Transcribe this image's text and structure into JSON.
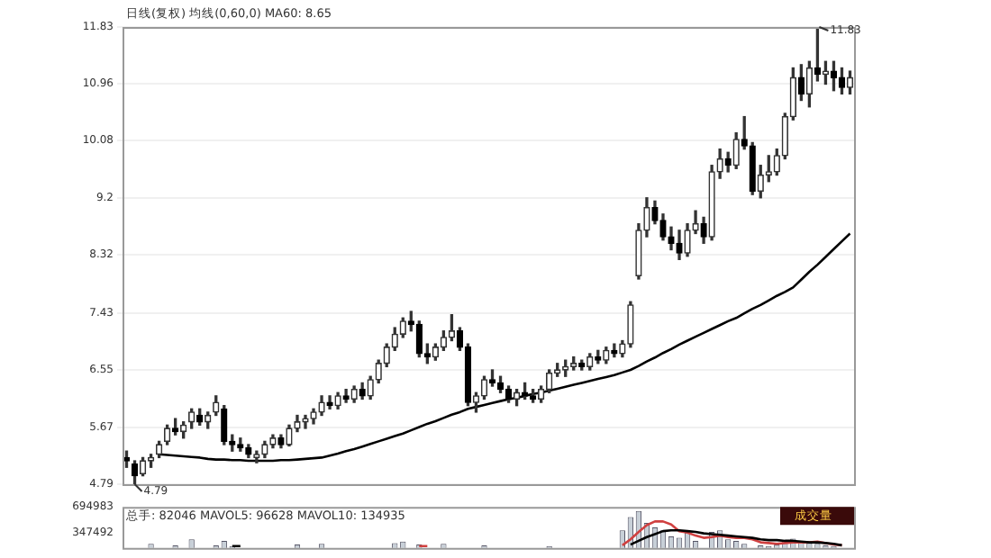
{
  "chart_data": [
    {
      "type": "candlestick",
      "title": "日线(复权) 均线(0,60,0) MA60: 8.65",
      "categories": [
        null,
        null,
        null,
        null,
        null,
        null,
        null,
        null,
        null,
        null,
        null,
        null,
        null,
        null,
        null,
        null,
        null,
        null,
        null,
        null,
        null,
        null,
        null,
        null,
        null,
        null,
        null,
        null,
        null,
        null,
        null,
        null,
        null,
        null,
        null,
        null,
        null,
        null,
        null,
        null,
        null,
        null,
        null,
        null,
        null,
        null,
        null,
        null,
        null,
        null,
        null,
        null,
        null,
        null,
        null,
        null,
        null,
        null,
        null,
        null,
        null,
        null,
        null,
        null,
        null,
        null,
        null,
        null,
        null,
        null,
        null,
        null,
        null,
        null,
        null,
        null,
        null,
        null,
        null,
        null,
        null,
        null,
        null,
        null,
        null,
        null,
        null,
        null,
        null,
        null
      ],
      "ohlc": [
        [
          5.2,
          5.3,
          5.05,
          5.15
        ],
        [
          5.1,
          5.15,
          4.79,
          4.92
        ],
        [
          4.95,
          5.2,
          4.92,
          5.15
        ],
        [
          5.15,
          5.25,
          5.05,
          5.2
        ],
        [
          5.25,
          5.45,
          5.2,
          5.4
        ],
        [
          5.45,
          5.7,
          5.4,
          5.65
        ],
        [
          5.65,
          5.8,
          5.55,
          5.6
        ],
        [
          5.6,
          5.75,
          5.5,
          5.7
        ],
        [
          5.75,
          5.95,
          5.65,
          5.9
        ],
        [
          5.85,
          5.95,
          5.7,
          5.75
        ],
        [
          5.75,
          5.9,
          5.65,
          5.85
        ],
        [
          5.9,
          6.15,
          5.85,
          6.05
        ],
        [
          5.95,
          6.0,
          5.4,
          5.45
        ],
        [
          5.45,
          5.55,
          5.3,
          5.4
        ],
        [
          5.4,
          5.5,
          5.3,
          5.35
        ],
        [
          5.35,
          5.4,
          5.2,
          5.25
        ],
        [
          5.2,
          5.3,
          5.12,
          5.25
        ],
        [
          5.25,
          5.45,
          5.2,
          5.4
        ],
        [
          5.4,
          5.55,
          5.35,
          5.5
        ],
        [
          5.5,
          5.55,
          5.35,
          5.4
        ],
        [
          5.4,
          5.7,
          5.38,
          5.65
        ],
        [
          5.65,
          5.85,
          5.6,
          5.75
        ],
        [
          5.75,
          5.85,
          5.65,
          5.8
        ],
        [
          5.8,
          5.95,
          5.72,
          5.9
        ],
        [
          5.9,
          6.15,
          5.85,
          6.05
        ],
        [
          6.05,
          6.15,
          5.95,
          6.0
        ],
        [
          6.0,
          6.2,
          5.95,
          6.15
        ],
        [
          6.15,
          6.25,
          6.05,
          6.1
        ],
        [
          6.1,
          6.3,
          6.05,
          6.25
        ],
        [
          6.25,
          6.35,
          6.1,
          6.15
        ],
        [
          6.15,
          6.45,
          6.1,
          6.4
        ],
        [
          6.4,
          6.7,
          6.35,
          6.65
        ],
        [
          6.65,
          6.95,
          6.6,
          6.9
        ],
        [
          6.9,
          7.2,
          6.85,
          7.1
        ],
        [
          7.1,
          7.35,
          7.05,
          7.3
        ],
        [
          7.3,
          7.45,
          7.15,
          7.25
        ],
        [
          7.25,
          7.3,
          6.75,
          6.8
        ],
        [
          6.8,
          6.95,
          6.65,
          6.75
        ],
        [
          6.75,
          6.95,
          6.7,
          6.9
        ],
        [
          6.9,
          7.15,
          6.85,
          7.05
        ],
        [
          7.05,
          7.4,
          7.0,
          7.15
        ],
        [
          7.15,
          7.2,
          6.85,
          6.9
        ],
        [
          6.9,
          6.95,
          6.0,
          6.05
        ],
        [
          6.05,
          6.2,
          5.9,
          6.15
        ],
        [
          6.15,
          6.45,
          6.1,
          6.4
        ],
        [
          6.4,
          6.55,
          6.3,
          6.35
        ],
        [
          6.35,
          6.45,
          6.2,
          6.25
        ],
        [
          6.25,
          6.3,
          6.05,
          6.1
        ],
        [
          6.1,
          6.25,
          6.0,
          6.2
        ],
        [
          6.2,
          6.35,
          6.1,
          6.15
        ],
        [
          6.15,
          6.25,
          6.05,
          6.1
        ],
        [
          6.1,
          6.3,
          6.05,
          6.25
        ],
        [
          6.25,
          6.55,
          6.2,
          6.5
        ],
        [
          6.5,
          6.65,
          6.45,
          6.55
        ],
        [
          6.55,
          6.7,
          6.45,
          6.6
        ],
        [
          6.6,
          6.75,
          6.55,
          6.65
        ],
        [
          6.65,
          6.7,
          6.55,
          6.6
        ],
        [
          6.6,
          6.8,
          6.55,
          6.75
        ],
        [
          6.75,
          6.85,
          6.65,
          6.7
        ],
        [
          6.7,
          6.9,
          6.65,
          6.85
        ],
        [
          6.85,
          6.95,
          6.75,
          6.8
        ],
        [
          6.8,
          7.0,
          6.75,
          6.95
        ],
        [
          6.95,
          7.6,
          6.9,
          7.55
        ],
        [
          8.0,
          8.8,
          7.95,
          8.7
        ],
        [
          8.7,
          9.2,
          8.6,
          9.05
        ],
        [
          9.05,
          9.15,
          8.8,
          8.85
        ],
        [
          8.85,
          8.95,
          8.55,
          8.6
        ],
        [
          8.6,
          8.75,
          8.4,
          8.5
        ],
        [
          8.5,
          8.7,
          8.25,
          8.35
        ],
        [
          8.35,
          8.8,
          8.3,
          8.7
        ],
        [
          8.7,
          9.0,
          8.65,
          8.8
        ],
        [
          8.8,
          8.9,
          8.5,
          8.6
        ],
        [
          8.6,
          9.7,
          8.55,
          9.6
        ],
        [
          9.6,
          9.95,
          9.5,
          9.8
        ],
        [
          9.8,
          9.9,
          9.6,
          9.7
        ],
        [
          9.7,
          10.2,
          9.65,
          10.1
        ],
        [
          10.1,
          10.45,
          9.95,
          10.0
        ],
        [
          10.0,
          10.05,
          9.25,
          9.3
        ],
        [
          9.3,
          9.7,
          9.2,
          9.55
        ],
        [
          9.55,
          9.85,
          9.45,
          9.6
        ],
        [
          9.6,
          9.95,
          9.55,
          9.85
        ],
        [
          9.85,
          10.5,
          9.8,
          10.45
        ],
        [
          10.45,
          11.2,
          10.4,
          11.05
        ],
        [
          11.05,
          11.25,
          10.7,
          10.8
        ],
        [
          10.8,
          11.3,
          10.6,
          11.2
        ],
        [
          11.2,
          11.83,
          11.0,
          11.1
        ],
        [
          11.1,
          11.3,
          10.95,
          11.15
        ],
        [
          11.15,
          11.3,
          10.85,
          11.05
        ],
        [
          11.05,
          11.2,
          10.8,
          10.9
        ],
        [
          10.9,
          11.15,
          10.8,
          11.05
        ]
      ],
      "series": [
        {
          "type": "line",
          "color": "#000000",
          "values": [
            null,
            null,
            null,
            null,
            5.25,
            5.24,
            5.23,
            5.22,
            5.21,
            5.2,
            5.18,
            5.17,
            5.17,
            5.16,
            5.16,
            5.15,
            5.15,
            5.15,
            5.15,
            5.16,
            5.16,
            5.17,
            5.18,
            5.19,
            5.2,
            5.23,
            5.26,
            5.3,
            5.33,
            5.37,
            5.41,
            5.45,
            5.49,
            5.53,
            5.57,
            5.62,
            5.67,
            5.72,
            5.76,
            5.81,
            5.86,
            5.9,
            5.95,
            5.98,
            6.01,
            6.04,
            6.07,
            6.1,
            6.12,
            6.15,
            6.18,
            6.2,
            6.23,
            6.26,
            6.29,
            6.32,
            6.35,
            6.38,
            6.41,
            6.44,
            6.47,
            6.51,
            6.55,
            6.61,
            6.68,
            6.74,
            6.81,
            6.87,
            6.94,
            7.0,
            7.06,
            7.12,
            7.18,
            7.24,
            7.3,
            7.35,
            7.42,
            7.49,
            7.55,
            7.62,
            7.69,
            7.75,
            7.82,
            7.94,
            8.06,
            8.17,
            8.29,
            8.41,
            8.53,
            8.65
          ]
        }
      ],
      "ylim": [
        4.79,
        11.83
      ],
      "yticks": [
        4.79,
        5.67,
        6.55,
        7.43,
        8.32,
        9.2,
        10.08,
        10.96,
        11.83
      ],
      "grid": "y",
      "tick_labels": "y",
      "annotations": [
        "11.83",
        "4.79"
      ]
    },
    {
      "type": "bar",
      "title": "总手: 82046 MAVOL5: 96628 MAVOL10: 134935",
      "categories": [
        null,
        null,
        null,
        null,
        null,
        null,
        null,
        null,
        null,
        null,
        null,
        null,
        null,
        null,
        null,
        null,
        null,
        null,
        null,
        null,
        null,
        null,
        null,
        null,
        null,
        null,
        null,
        null,
        null,
        null,
        null,
        null,
        null,
        null,
        null,
        null,
        null,
        null,
        null,
        null,
        null,
        null,
        null,
        null,
        null,
        null,
        null,
        null,
        null,
        null,
        null,
        null,
        null,
        null,
        null,
        null,
        null,
        null,
        null,
        null,
        null,
        null,
        null,
        null,
        null,
        null,
        null,
        null,
        null,
        null,
        null,
        null,
        null,
        null,
        null,
        null,
        null,
        null,
        null,
        null,
        null,
        null,
        null,
        null,
        null,
        null,
        null,
        null,
        null,
        null
      ],
      "series": [
        {
          "color": "#c8d0d8",
          "values": [
            null,
            null,
            null,
            200000,
            null,
            null,
            180000,
            null,
            260000,
            null,
            null,
            180000,
            240000,
            170000,
            null,
            null,
            null,
            null,
            null,
            null,
            null,
            190000,
            null,
            null,
            200000,
            null,
            null,
            null,
            null,
            null,
            null,
            null,
            null,
            210000,
            230000,
            null,
            190000,
            null,
            null,
            200000,
            null,
            null,
            null,
            null,
            180000,
            null,
            null,
            null,
            null,
            null,
            null,
            null,
            170000,
            null,
            null,
            null,
            null,
            null,
            null,
            null,
            null,
            380000,
            560000,
            640000,
            480000,
            420000,
            380000,
            300000,
            280000,
            350000,
            240000,
            null,
            360000,
            380000,
            260000,
            240000,
            200000,
            null,
            180000,
            170000,
            190000,
            250000,
            270000,
            230000,
            210000,
            200000,
            180000,
            170000,
            null,
            null
          ]
        },
        {
          "type": "line",
          "color": "#000000",
          "values": [
            null,
            null,
            null,
            null,
            null,
            null,
            null,
            null,
            null,
            null,
            null,
            null,
            null,
            170000,
            170000,
            null,
            null,
            null,
            null,
            null,
            null,
            null,
            null,
            null,
            null,
            null,
            null,
            null,
            null,
            null,
            null,
            null,
            null,
            null,
            null,
            null,
            null,
            null,
            null,
            null,
            null,
            null,
            null,
            null,
            null,
            null,
            null,
            null,
            null,
            null,
            null,
            null,
            null,
            null,
            null,
            null,
            null,
            null,
            null,
            null,
            null,
            null,
            190000,
            240000,
            290000,
            330000,
            370000,
            380000,
            380000,
            370000,
            360000,
            340000,
            330000,
            320000,
            310000,
            300000,
            290000,
            280000,
            260000,
            250000,
            250000,
            240000,
            240000,
            230000,
            220000,
            220000,
            210000,
            200000,
            180000,
            null
          ]
        },
        {
          "type": "line",
          "color": "#d04040",
          "values": [
            null,
            null,
            null,
            null,
            null,
            null,
            null,
            null,
            null,
            null,
            null,
            null,
            null,
            null,
            null,
            null,
            null,
            null,
            null,
            null,
            null,
            null,
            null,
            null,
            null,
            null,
            null,
            null,
            null,
            null,
            null,
            null,
            null,
            null,
            null,
            null,
            170000,
            170000,
            null,
            null,
            null,
            null,
            null,
            null,
            null,
            null,
            null,
            null,
            null,
            null,
            null,
            null,
            null,
            null,
            null,
            null,
            null,
            null,
            null,
            null,
            null,
            180000,
            260000,
            360000,
            450000,
            500000,
            500000,
            460000,
            370000,
            350000,
            310000,
            280000,
            290000,
            310000,
            290000,
            280000,
            280000,
            260000,
            220000,
            210000,
            200000,
            210000,
            220000,
            220000,
            220000,
            230000,
            210000,
            190000,
            180000,
            null
          ]
        }
      ],
      "ylim": [
        145000,
        694983
      ],
      "yticks": [
        347492,
        694983
      ],
      "grid": false,
      "tick_labels": "y",
      "annotations": [
        "成交量"
      ]
    }
  ]
}
